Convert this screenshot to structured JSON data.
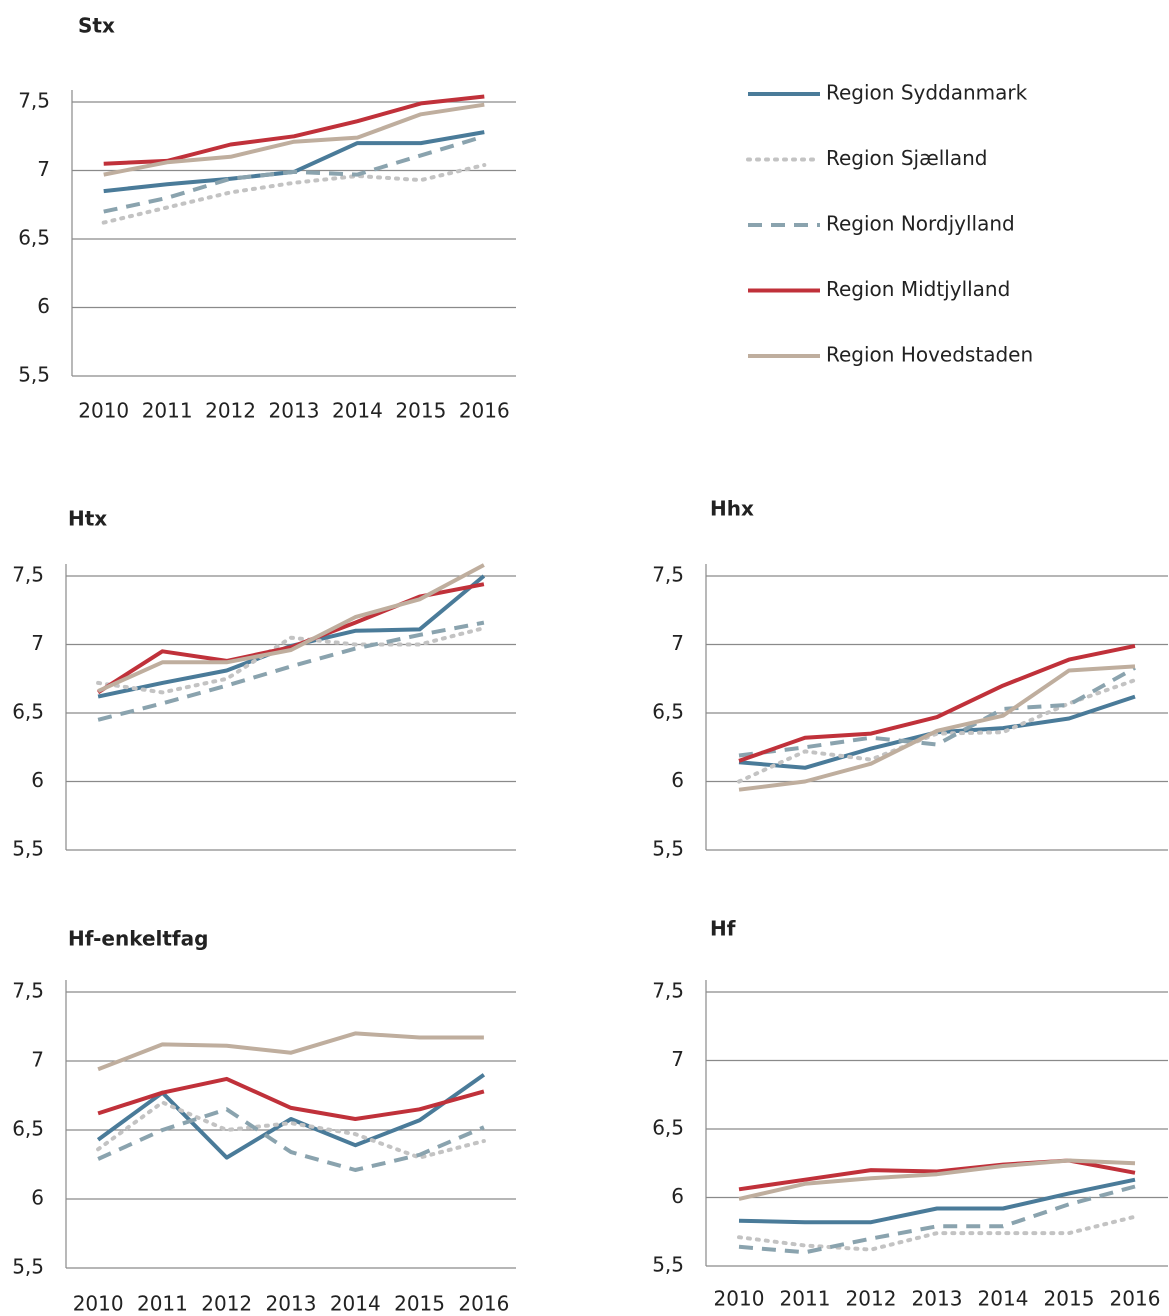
{
  "chart_data": [
    {
      "type": "line",
      "title": "Stx",
      "categories": [
        "2010",
        "2011",
        "2012",
        "2013",
        "2014",
        "2015",
        "2016"
      ],
      "ylim": [
        5.5,
        7.5
      ],
      "yticks": [
        {
          "value": 5.5,
          "label": "5,5"
        },
        6,
        {
          "value": 6.5,
          "label": "6,5"
        },
        7,
        {
          "value": 7.5,
          "label": "7,5"
        }
      ],
      "grid": true,
      "legend": "right",
      "series": [
        {
          "name": "Region Syddanmark",
          "color": "#4a7b99",
          "style": "solid",
          "values": [
            6.85,
            6.9,
            6.94,
            6.99,
            7.2,
            7.2,
            7.28
          ]
        },
        {
          "name": "Region Sjælland",
          "color": "#c3c3c3",
          "style": "dotted",
          "values": [
            6.62,
            6.73,
            6.84,
            6.91,
            6.96,
            6.93,
            7.04
          ]
        },
        {
          "name": "Region Nordjylland",
          "color": "#8aa3ae",
          "style": "dashed",
          "values": [
            6.7,
            6.8,
            6.94,
            6.99,
            6.97,
            7.11,
            7.25
          ]
        },
        {
          "name": "Region Midtjylland",
          "color": "#c0313a",
          "style": "solid",
          "values": [
            7.05,
            7.07,
            7.19,
            7.25,
            7.36,
            7.49,
            7.54
          ]
        },
        {
          "name": "Region Hovedstaden",
          "color": "#bfae9e",
          "style": "solid",
          "values": [
            6.97,
            7.06,
            7.1,
            7.21,
            7.24,
            7.41,
            7.48
          ]
        }
      ]
    },
    {
      "type": "line",
      "title": "Htx",
      "ylim": [
        5.5,
        7.5
      ],
      "yticks": [
        {
          "value": 5.5,
          "label": "5,5"
        },
        6,
        {
          "value": 6.5,
          "label": "6,5"
        },
        7,
        {
          "value": 7.5,
          "label": "7,5"
        }
      ],
      "grid": true,
      "series": [
        {
          "values": [
            6.62,
            6.72,
            6.81,
            6.99,
            7.1,
            7.11,
            7.5
          ]
        },
        {
          "values": [
            6.72,
            6.65,
            6.75,
            7.05,
            7.0,
            7.0,
            7.12
          ]
        },
        {
          "values": [
            6.45,
            6.57,
            6.7,
            6.84,
            6.97,
            7.07,
            7.16
          ]
        },
        {
          "values": [
            6.65,
            6.95,
            6.88,
            6.98,
            7.16,
            7.35,
            7.44
          ]
        },
        {
          "values": [
            6.66,
            6.87,
            6.87,
            6.96,
            7.2,
            7.33,
            7.58
          ]
        }
      ]
    },
    {
      "type": "line",
      "title": "Hhx",
      "ylim": [
        5.5,
        7.5
      ],
      "yticks": [
        {
          "value": 5.5,
          "label": "5,5"
        },
        6,
        {
          "value": 6.5,
          "label": "6,5"
        },
        7,
        {
          "value": 7.5,
          "label": "7,5"
        }
      ],
      "grid": true,
      "series": [
        {
          "values": [
            6.14,
            6.1,
            6.24,
            6.36,
            6.39,
            6.46,
            6.62
          ]
        },
        {
          "values": [
            6.0,
            6.22,
            6.16,
            6.35,
            6.36,
            6.57,
            6.74
          ]
        },
        {
          "values": [
            6.19,
            6.25,
            6.32,
            6.27,
            6.53,
            6.56,
            6.83
          ]
        },
        {
          "values": [
            6.15,
            6.32,
            6.35,
            6.47,
            6.7,
            6.89,
            6.99
          ]
        },
        {
          "values": [
            5.94,
            6.0,
            6.13,
            6.37,
            6.48,
            6.81,
            6.84
          ]
        }
      ]
    },
    {
      "type": "line",
      "title": "Hf-enkeltfag",
      "categories": [
        "2010",
        "2011",
        "2012",
        "2013",
        "2014",
        "2015",
        "2016"
      ],
      "ylim": [
        5.5,
        7.5
      ],
      "yticks": [
        {
          "value": 5.5,
          "label": "5,5"
        },
        6,
        {
          "value": 6.5,
          "label": "6,5"
        },
        7,
        {
          "value": 7.5,
          "label": "7,5"
        }
      ],
      "grid": true,
      "series": [
        {
          "values": [
            6.43,
            6.77,
            6.3,
            6.58,
            6.39,
            6.57,
            6.9
          ]
        },
        {
          "values": [
            6.36,
            6.7,
            6.5,
            6.55,
            6.47,
            6.3,
            6.42
          ]
        },
        {
          "values": [
            6.29,
            6.5,
            6.65,
            6.34,
            6.21,
            6.32,
            6.52
          ]
        },
        {
          "values": [
            6.62,
            6.77,
            6.87,
            6.66,
            6.58,
            6.65,
            6.78
          ]
        },
        {
          "values": [
            6.94,
            7.12,
            7.11,
            7.06,
            7.2,
            7.17,
            7.17
          ]
        }
      ]
    },
    {
      "type": "line",
      "title": "Hf",
      "categories": [
        "2010",
        "2011",
        "2012",
        "2013",
        "2014",
        "2015",
        "2016"
      ],
      "ylim": [
        5.5,
        7.5
      ],
      "yticks": [
        {
          "value": 5.5,
          "label": "5,5"
        },
        6,
        {
          "value": 6.5,
          "label": "6,5"
        },
        7,
        {
          "value": 7.5,
          "label": "7,5"
        }
      ],
      "grid": true,
      "series": [
        {
          "values": [
            5.83,
            5.82,
            5.82,
            5.92,
            5.92,
            6.03,
            6.13
          ]
        },
        {
          "values": [
            5.71,
            5.65,
            5.62,
            5.74,
            5.74,
            5.74,
            5.86
          ]
        },
        {
          "values": [
            5.64,
            5.6,
            5.7,
            5.79,
            5.79,
            5.95,
            6.08
          ]
        },
        {
          "values": [
            6.06,
            6.13,
            6.2,
            6.19,
            6.24,
            6.27,
            6.18
          ]
        },
        {
          "values": [
            5.99,
            6.1,
            6.14,
            6.17,
            6.23,
            6.27,
            6.25
          ]
        }
      ]
    }
  ]
}
